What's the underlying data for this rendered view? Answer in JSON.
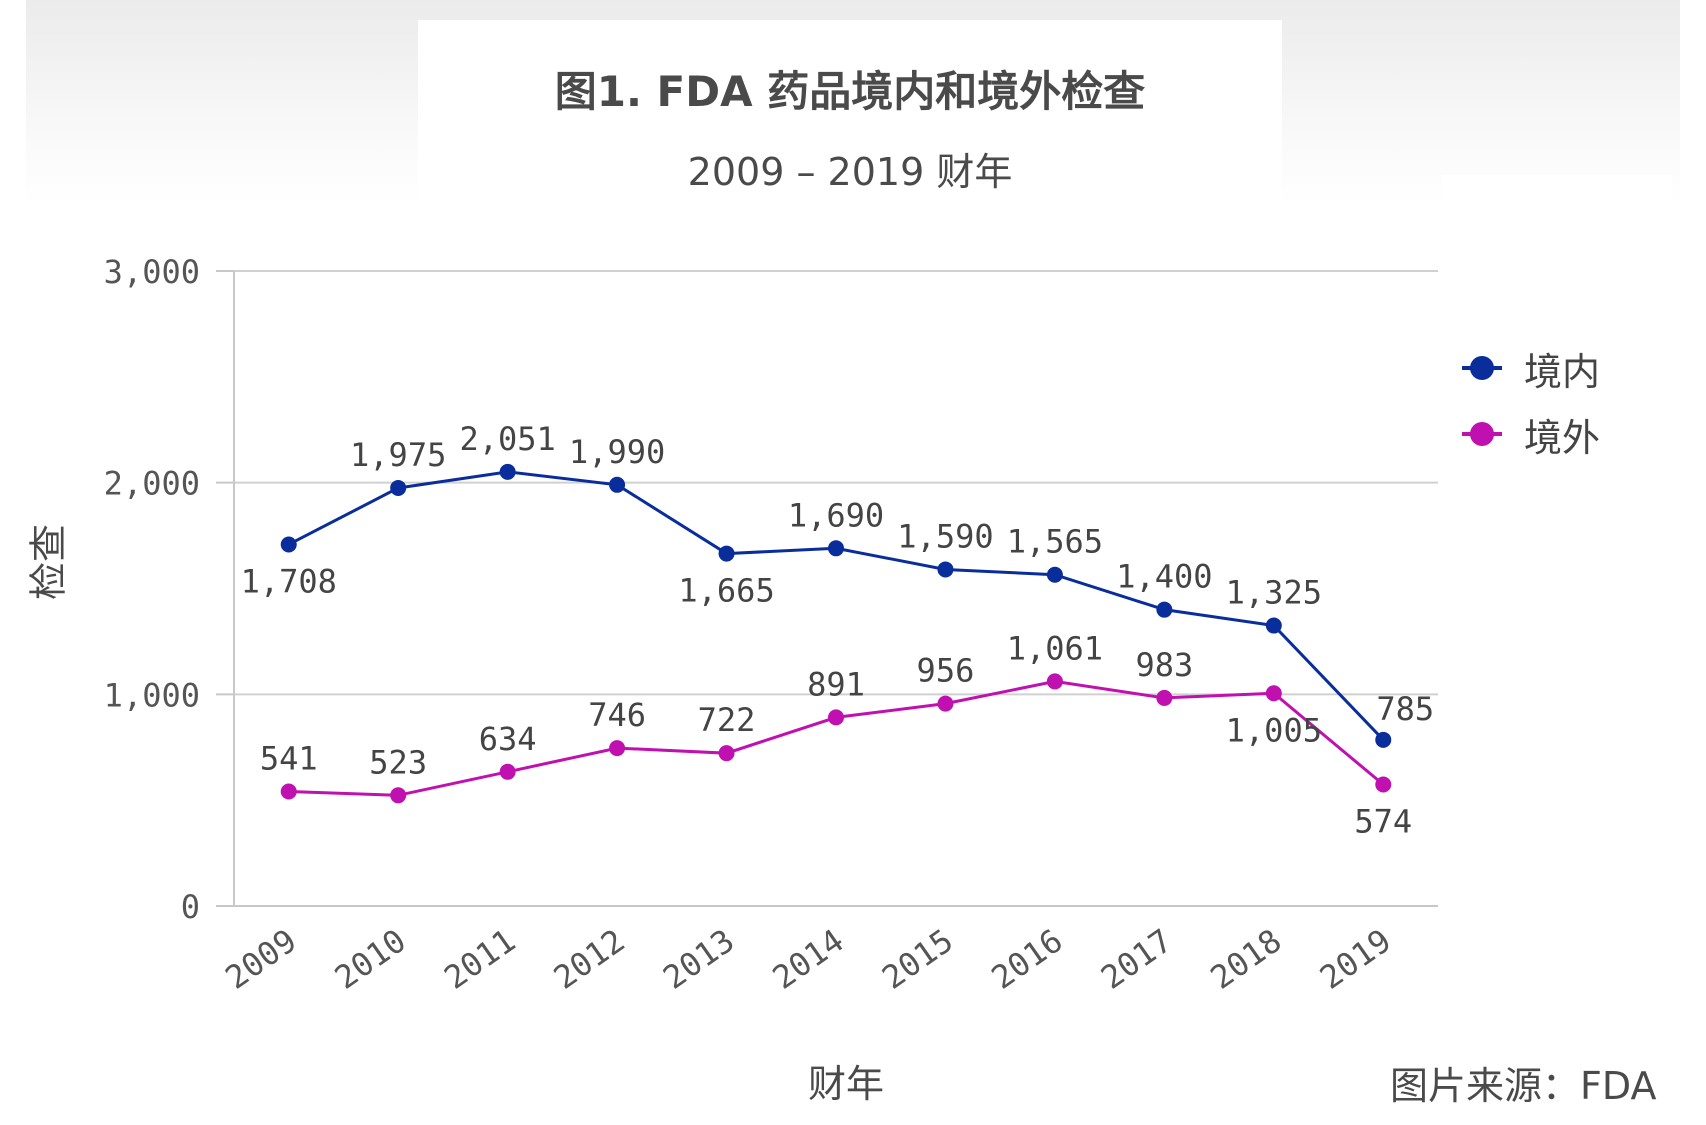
{
  "header": {
    "title": "图1. FDA 药品境内和境外检查",
    "subtitle": "2009 – 2019 财年"
  },
  "source": "图片来源：FDA",
  "chart_data": {
    "type": "line",
    "title": "图1. FDA 药品境内和境外检查",
    "subtitle": "2009 – 2019 财年",
    "xlabel": "财年",
    "ylabel": "检查",
    "categories": [
      "2009",
      "2010",
      "2011",
      "2012",
      "2013",
      "2014",
      "2015",
      "2016",
      "2017",
      "2018",
      "2019"
    ],
    "ylim": [
      0,
      3000
    ],
    "yticks": [
      0,
      1000,
      2000,
      3000
    ],
    "ytick_labels": [
      "0",
      "1,000",
      "2,000",
      "3,000"
    ],
    "grid": true,
    "legend_position": "right",
    "series": [
      {
        "name": "境内",
        "color": "#0a2d9c",
        "values": [
          1708,
          1975,
          2051,
          1990,
          1665,
          1690,
          1590,
          1565,
          1400,
          1325,
          785
        ],
        "labels": [
          "1,708",
          "1,975",
          "2,051",
          "1,990",
          "1,665",
          "1,690",
          "1,590",
          "1,565",
          "1,400",
          "1,325",
          "785"
        ]
      },
      {
        "name": "境外",
        "color": "#c010b0",
        "values": [
          541,
          523,
          634,
          746,
          722,
          891,
          956,
          1061,
          983,
          1005,
          574
        ],
        "labels": [
          "541",
          "523",
          "634",
          "746",
          "722",
          "891",
          "956",
          "1,061",
          "983",
          "1,005",
          "574"
        ]
      }
    ]
  }
}
